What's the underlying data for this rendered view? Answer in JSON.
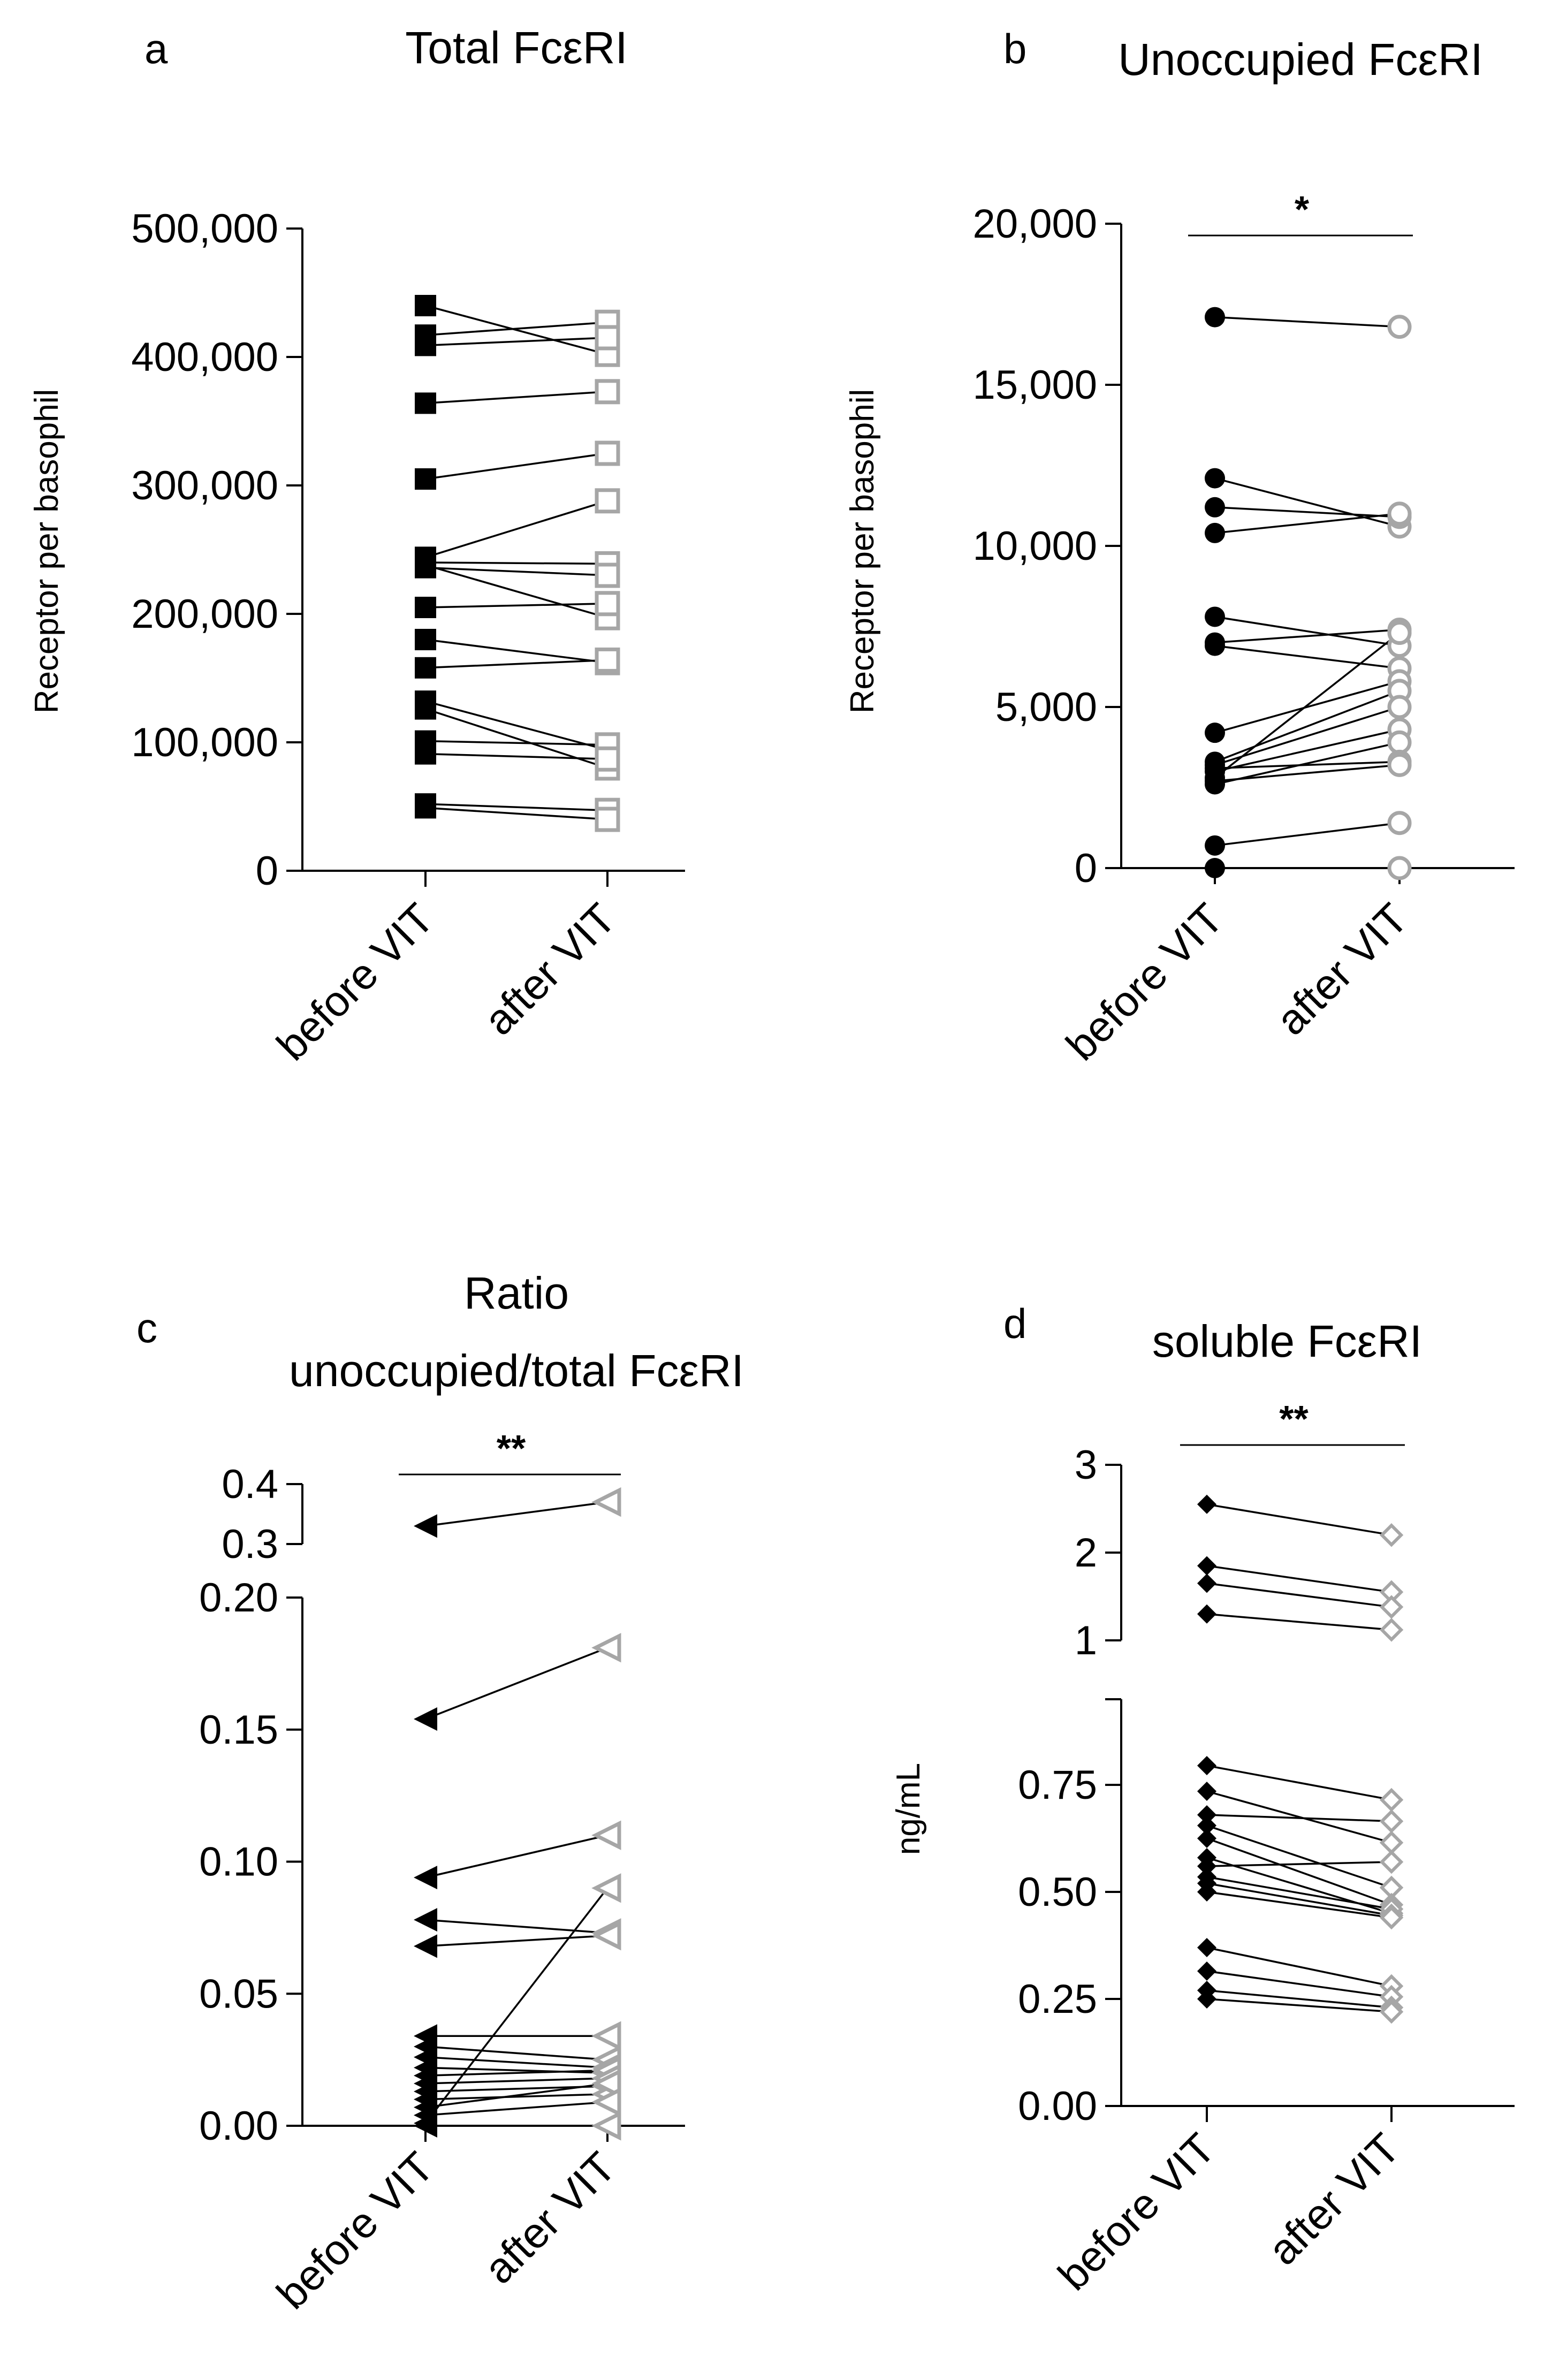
{
  "chart_data": [
    {
      "panel": "a",
      "type": "scatter",
      "title": "Total FcεRI",
      "ylabel": "Receptor per basophil",
      "xlabel": "",
      "categories": [
        "before VIT",
        "after VIT"
      ],
      "ylim": [
        0,
        500000
      ],
      "yticks": [
        0,
        100000,
        200000,
        300000,
        400000,
        500000
      ],
      "ytick_labels": [
        "0",
        "100,000",
        "200,000",
        "300,000",
        "400,000",
        "500,000"
      ],
      "marker": "square",
      "colors": {
        "before": "#000000",
        "after": "#a6a6a6"
      },
      "significance": "",
      "pairs": [
        [
          440000,
          402000
        ],
        [
          417000,
          427000
        ],
        [
          409000,
          415000
        ],
        [
          364000,
          373000
        ],
        [
          305000,
          325000
        ],
        [
          244000,
          288000
        ],
        [
          240000,
          239000
        ],
        [
          236000,
          230000
        ],
        [
          238000,
          197000
        ],
        [
          205000,
          208000
        ],
        [
          180000,
          162000
        ],
        [
          158000,
          164000
        ],
        [
          132000,
          94000
        ],
        [
          126000,
          80000
        ],
        [
          101000,
          98000
        ],
        [
          91000,
          87000
        ],
        [
          52000,
          47000
        ],
        [
          49000,
          40000
        ]
      ]
    },
    {
      "panel": "b",
      "type": "scatter",
      "title": "Unoccupied FcεRI",
      "ylabel": "Receptor per basophil",
      "xlabel": "",
      "categories": [
        "before VIT",
        "after VIT"
      ],
      "ylim": [
        0,
        20000
      ],
      "yticks": [
        0,
        5000,
        10000,
        15000,
        20000
      ],
      "ytick_labels": [
        "0",
        "5,000",
        "10,000",
        "15,000",
        "20,000"
      ],
      "marker": "circle",
      "colors": {
        "before": "#000000",
        "after": "#a6a6a6"
      },
      "significance": "*",
      "pairs": [
        [
          17100,
          16800
        ],
        [
          12100,
          10600
        ],
        [
          11200,
          10900
        ],
        [
          10400,
          11000
        ],
        [
          7800,
          6900
        ],
        [
          7000,
          7400
        ],
        [
          6900,
          6200
        ],
        [
          4200,
          5800
        ],
        [
          3300,
          5500
        ],
        [
          3200,
          5000
        ],
        [
          3000,
          4300
        ],
        [
          2800,
          7300
        ],
        [
          2600,
          3900
        ],
        [
          3100,
          3300
        ],
        [
          2700,
          3200
        ],
        [
          700,
          1400
        ],
        [
          0,
          0
        ]
      ]
    },
    {
      "panel": "c",
      "type": "scatter",
      "title": "Ratio unoccupied/total FcεRI",
      "title_lines": [
        "Ratio",
        "unoccupied/total FcεRI"
      ],
      "ylabel": "",
      "xlabel": "",
      "categories": [
        "before VIT",
        "after VIT"
      ],
      "ylim": [
        0,
        0.4
      ],
      "axis_break": [
        0.2,
        0.3
      ],
      "yticks_lower": [
        0,
        0.05,
        0.1,
        0.15,
        0.2
      ],
      "ytick_labels_lower": [
        "0.00",
        "0.05",
        "0.10",
        "0.15",
        "0.20"
      ],
      "yticks_upper": [
        0.3,
        0.4
      ],
      "ytick_labels_upper": [
        "0.3",
        "0.4"
      ],
      "marker": "triangle-left",
      "colors": {
        "before": "#000000",
        "after": "#a6a6a6"
      },
      "significance": "**",
      "pairs": [
        [
          0.33,
          0.37
        ],
        [
          0.154,
          0.181
        ],
        [
          0.094,
          0.11
        ],
        [
          0.078,
          0.073
        ],
        [
          0.068,
          0.072
        ],
        [
          0.034,
          0.034
        ],
        [
          0.03,
          0.025
        ],
        [
          0.026,
          0.022
        ],
        [
          0.022,
          0.02
        ],
        [
          0.019,
          0.021
        ],
        [
          0.016,
          0.018
        ],
        [
          0.013,
          0.015
        ],
        [
          0.01,
          0.012
        ],
        [
          0.007,
          0.016
        ],
        [
          0.004,
          0.009
        ],
        [
          0.001,
          0.09
        ],
        [
          0.0,
          0.0
        ]
      ]
    },
    {
      "panel": "d",
      "type": "scatter",
      "title": "soluble FcεRI",
      "ylabel": "ng/mL",
      "xlabel": "",
      "categories": [
        "before VIT",
        "after VIT"
      ],
      "ylim": [
        0,
        3
      ],
      "axis_break": [
        1,
        1
      ],
      "yticks_lower": [
        0,
        0.25,
        0.5,
        0.75
      ],
      "ytick_labels_lower": [
        "0.00",
        "0.25",
        "0.50",
        "0.75"
      ],
      "yticks_upper": [
        1,
        2,
        3
      ],
      "ytick_labels_upper": [
        "1",
        "2",
        "3"
      ],
      "marker": "diamond",
      "colors": {
        "before": "#000000",
        "after": "#a6a6a6"
      },
      "significance": "**",
      "pairs": [
        [
          2.55,
          2.2
        ],
        [
          1.85,
          1.55
        ],
        [
          1.65,
          1.38
        ],
        [
          1.3,
          1.12
        ],
        [
          0.795,
          0.715
        ],
        [
          0.735,
          0.615
        ],
        [
          0.68,
          0.665
        ],
        [
          0.655,
          0.51
        ],
        [
          0.625,
          0.47
        ],
        [
          0.58,
          0.45
        ],
        [
          0.56,
          0.57
        ],
        [
          0.535,
          0.46
        ],
        [
          0.52,
          0.445
        ],
        [
          0.5,
          0.44
        ],
        [
          0.37,
          0.28
        ],
        [
          0.315,
          0.255
        ],
        [
          0.27,
          0.23
        ],
        [
          0.25,
          0.22
        ]
      ]
    }
  ]
}
